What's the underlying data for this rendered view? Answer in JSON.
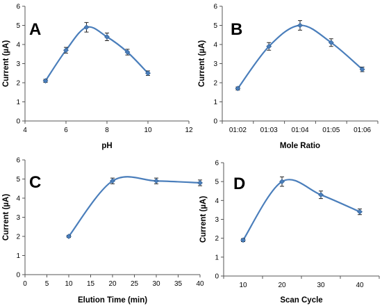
{
  "chart_data": [
    {
      "type": "line",
      "panel_label": "A",
      "xlabel": "pH",
      "ylabel": "Current (µA)",
      "x_axis": "numeric",
      "xlim": [
        4,
        12
      ],
      "xticks": [
        4,
        6,
        8,
        10,
        12
      ],
      "ylim": [
        0,
        6
      ],
      "yticks": [
        0,
        1,
        2,
        3,
        4,
        5,
        6
      ],
      "x": [
        5,
        6,
        7,
        8,
        9,
        10
      ],
      "y": [
        2.1,
        3.7,
        4.9,
        4.4,
        3.6,
        2.5
      ],
      "error": [
        0.08,
        0.15,
        0.25,
        0.2,
        0.15,
        0.12
      ],
      "grid": false,
      "color": "#4a7ebb"
    },
    {
      "type": "line",
      "panel_label": "B",
      "xlabel": "Mole Ratio",
      "ylabel": "Current (µA)",
      "x_axis": "category",
      "categories": [
        "01:02",
        "01:03",
        "01:04",
        "01:05",
        "01:06"
      ],
      "ylim": [
        0,
        6
      ],
      "yticks": [
        0,
        1,
        2,
        3,
        4,
        5,
        6
      ],
      "y": [
        1.7,
        3.9,
        5.0,
        4.1,
        2.7
      ],
      "error": [
        0.08,
        0.2,
        0.25,
        0.2,
        0.12
      ],
      "grid": false,
      "color": "#4a7ebb"
    },
    {
      "type": "line",
      "panel_label": "C",
      "xlabel": "Elution Time (min)",
      "ylabel": "Current (µA)",
      "x_axis": "numeric",
      "xlim": [
        0,
        40
      ],
      "xticks": [
        0,
        5,
        10,
        15,
        20,
        25,
        30,
        35,
        40
      ],
      "ylim": [
        0,
        6
      ],
      "yticks": [
        0,
        1,
        2,
        3,
        4,
        5,
        6
      ],
      "x": [
        10,
        20,
        30,
        40
      ],
      "y": [
        2.0,
        4.9,
        4.9,
        4.8
      ],
      "error": [
        0.06,
        0.15,
        0.15,
        0.15
      ],
      "grid": false,
      "color": "#4a7ebb"
    },
    {
      "type": "line",
      "panel_label": "D",
      "xlabel": "Scan Cycle",
      "ylabel": "Current (µA)",
      "x_axis": "category",
      "categories": [
        "10",
        "20",
        "30",
        "40"
      ],
      "ylim": [
        0,
        6
      ],
      "yticks": [
        0,
        1,
        2,
        3,
        4,
        5,
        6
      ],
      "y": [
        1.9,
        5.0,
        4.3,
        3.4
      ],
      "error": [
        0.08,
        0.25,
        0.2,
        0.15
      ],
      "grid": false,
      "color": "#4a7ebb"
    }
  ]
}
